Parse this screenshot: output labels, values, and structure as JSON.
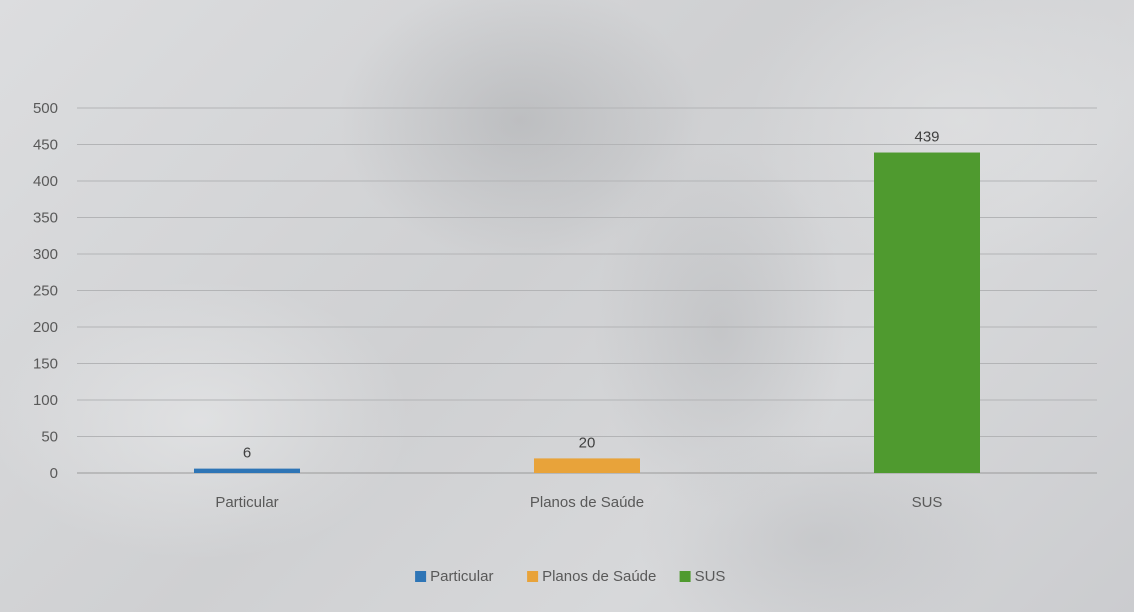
{
  "chart_data": {
    "type": "bar",
    "categories": [
      "Particular",
      "Planos de Saúde",
      "SUS"
    ],
    "values": [
      6,
      20,
      439
    ],
    "data_labels": [
      "6",
      "20",
      "439"
    ],
    "colors": [
      "#2e75b6",
      "#e8a33a",
      "#4f9a2f"
    ],
    "ylim": [
      0,
      500
    ],
    "yticks": [
      "0",
      "50",
      "100",
      "150",
      "200",
      "250",
      "300",
      "350",
      "400",
      "450",
      "500"
    ],
    "grid": true,
    "legend": {
      "position": "bottom",
      "entries": [
        "Particular",
        "Planos de Saúde",
        "SUS"
      ]
    },
    "title": "",
    "xlabel": "",
    "ylabel": ""
  }
}
